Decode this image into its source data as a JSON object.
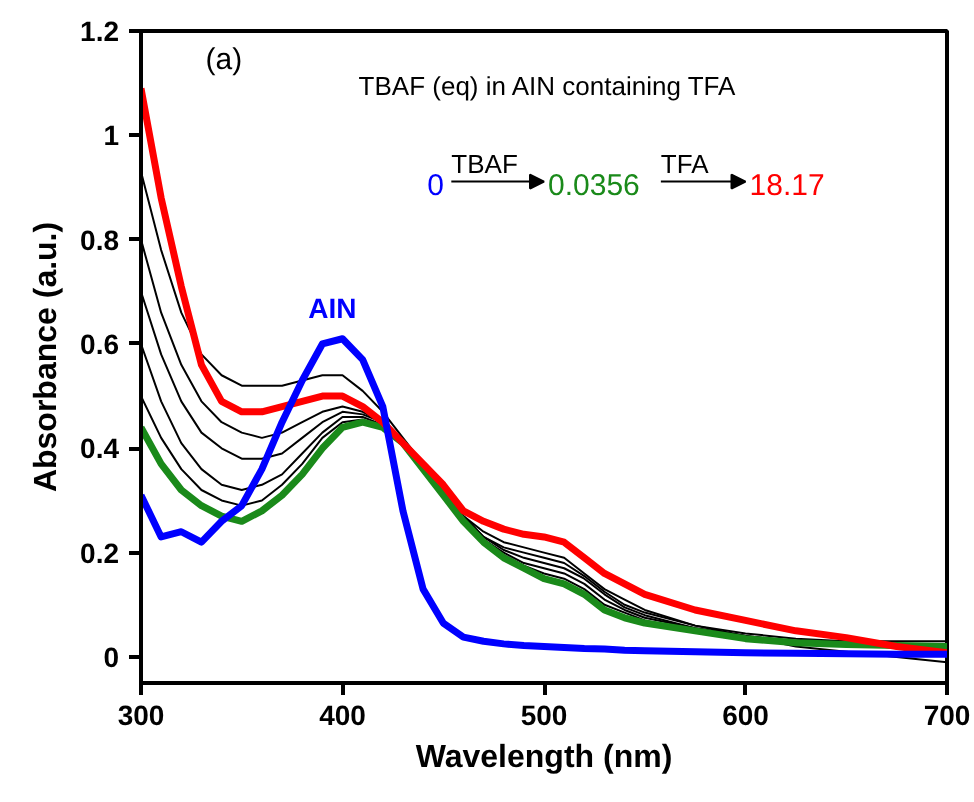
{
  "chart_data": {
    "type": "line",
    "xlabel": "Wavelength (nm)",
    "ylabel": "Absorbance (a.u.)",
    "xlim": [
      300,
      700
    ],
    "xticks": [
      300,
      400,
      500,
      600,
      700
    ],
    "ylim": [
      -0.05,
      1.2
    ],
    "yticks": [
      0,
      0.2,
      0.4,
      0.6,
      0.8,
      1,
      1.2
    ],
    "grid": false,
    "x": [
      300,
      310,
      320,
      330,
      340,
      350,
      360,
      370,
      380,
      390,
      400,
      410,
      420,
      430,
      440,
      450,
      460,
      470,
      480,
      490,
      500,
      510,
      520,
      530,
      540,
      550,
      575,
      600,
      625,
      650,
      675,
      700
    ],
    "annotations": [
      "(a)",
      "TBAF (eq) in AIN containing TFA",
      "TBAF",
      "TFA",
      "AIN"
    ],
    "series": [
      {
        "color": "#000000",
        "values": [
          0.93,
          0.78,
          0.66,
          0.58,
          0.54,
          0.52,
          0.52,
          0.52,
          0.53,
          0.54,
          0.54,
          0.51,
          0.47,
          0.42,
          0.37,
          0.32,
          0.27,
          0.24,
          0.22,
          0.21,
          0.2,
          0.19,
          0.16,
          0.13,
          0.11,
          0.09,
          0.06,
          0.04,
          0.02,
          0.01,
          0.0,
          -0.01
        ]
      },
      {
        "color": "#000000",
        "values": [
          0.8,
          0.66,
          0.56,
          0.49,
          0.45,
          0.43,
          0.42,
          0.43,
          0.45,
          0.47,
          0.48,
          0.47,
          0.45,
          0.41,
          0.37,
          0.32,
          0.27,
          0.23,
          0.21,
          0.2,
          0.19,
          0.18,
          0.155,
          0.125,
          0.1,
          0.085,
          0.06,
          0.045,
          0.035,
          0.03,
          0.03,
          0.03
        ]
      },
      {
        "color": "#000000",
        "values": [
          0.7,
          0.58,
          0.49,
          0.43,
          0.4,
          0.38,
          0.38,
          0.39,
          0.42,
          0.45,
          0.47,
          0.465,
          0.45,
          0.41,
          0.37,
          0.32,
          0.27,
          0.23,
          0.205,
          0.19,
          0.18,
          0.17,
          0.15,
          0.12,
          0.095,
          0.08,
          0.055,
          0.04,
          0.03,
          0.025,
          0.02,
          0.015
        ]
      },
      {
        "color": "#000000",
        "values": [
          0.6,
          0.49,
          0.41,
          0.36,
          0.33,
          0.32,
          0.33,
          0.35,
          0.39,
          0.43,
          0.46,
          0.46,
          0.445,
          0.41,
          0.365,
          0.315,
          0.265,
          0.225,
          0.2,
          0.18,
          0.17,
          0.16,
          0.14,
          0.11,
          0.09,
          0.075,
          0.055,
          0.04,
          0.03,
          0.025,
          0.022,
          0.02
        ]
      },
      {
        "color": "#000000",
        "values": [
          0.5,
          0.42,
          0.36,
          0.32,
          0.3,
          0.29,
          0.3,
          0.33,
          0.37,
          0.42,
          0.45,
          0.455,
          0.44,
          0.41,
          0.36,
          0.31,
          0.26,
          0.22,
          0.195,
          0.175,
          0.16,
          0.15,
          0.13,
          0.1,
          0.085,
          0.07,
          0.05,
          0.038,
          0.03,
          0.027,
          0.025,
          0.025
        ]
      },
      {
        "name": "0.0356",
        "color": "#1a8a1a",
        "values": [
          0.44,
          0.37,
          0.32,
          0.29,
          0.27,
          0.26,
          0.28,
          0.31,
          0.35,
          0.4,
          0.44,
          0.45,
          0.44,
          0.41,
          0.36,
          0.31,
          0.26,
          0.22,
          0.19,
          0.17,
          0.15,
          0.14,
          0.12,
          0.09,
          0.075,
          0.065,
          0.05,
          0.035,
          0.027,
          0.024,
          0.022,
          0.02
        ]
      },
      {
        "name": "18.17",
        "color": "#ff0000",
        "values": [
          1.09,
          0.88,
          0.71,
          0.56,
          0.49,
          0.47,
          0.47,
          0.48,
          0.49,
          0.5,
          0.5,
          0.48,
          0.45,
          0.41,
          0.37,
          0.33,
          0.28,
          0.26,
          0.245,
          0.235,
          0.23,
          0.22,
          0.19,
          0.16,
          0.14,
          0.12,
          0.09,
          0.07,
          0.05,
          0.037,
          0.02,
          0.008
        ]
      },
      {
        "name": "0",
        "color": "#0000ff",
        "values": [
          0.31,
          0.23,
          0.24,
          0.22,
          0.26,
          0.29,
          0.36,
          0.45,
          0.53,
          0.6,
          0.61,
          0.57,
          0.48,
          0.28,
          0.13,
          0.065,
          0.038,
          0.03,
          0.025,
          0.022,
          0.02,
          0.018,
          0.016,
          0.015,
          0.013,
          0.012,
          0.01,
          0.008,
          0.007,
          0.006,
          0.005,
          0.005
        ]
      }
    ]
  }
}
